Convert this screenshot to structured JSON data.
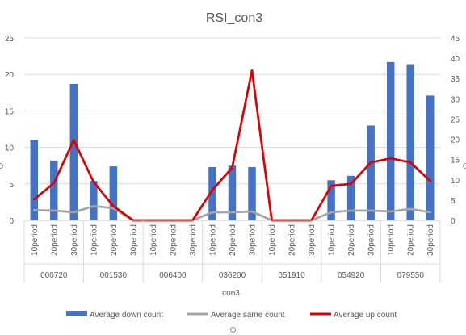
{
  "chart_data": {
    "type": "bar",
    "title": "RSI_con3",
    "group_axis_label": "con3",
    "groups": [
      "000720",
      "001530",
      "006400",
      "036200",
      "051910",
      "054920",
      "079550"
    ],
    "periods": [
      "10period",
      "20period",
      "30period"
    ],
    "categories": [
      "000720 10period",
      "000720 20period",
      "000720 30period",
      "001530 10period",
      "001530 20period",
      "001530 30period",
      "006400 10period",
      "006400 20period",
      "006400 30period",
      "036200 10period",
      "036200 20period",
      "036200 30period",
      "051910 10period",
      "051910 20period",
      "051910 30period",
      "054920 10period",
      "054920 20period",
      "054920 30period",
      "079550 10period",
      "079550 20period",
      "079550 30period"
    ],
    "left_axis": {
      "min": 0,
      "max": 25,
      "ticks": [
        "0",
        "5",
        "10",
        "15",
        "20",
        "25"
      ]
    },
    "right_axis": {
      "min": 0,
      "max": 45,
      "ticks": [
        "0",
        "5",
        "10",
        "15",
        "20",
        "25",
        "30",
        "35",
        "40",
        "45"
      ]
    },
    "grid": true,
    "legend_position": "bottom",
    "series": [
      {
        "name": "Average down count",
        "kind": "bar",
        "axis": "left",
        "color": "#4472c4",
        "values": [
          11,
          8.2,
          18.7,
          5.4,
          7.4,
          0,
          0,
          0,
          0,
          7.3,
          7.5,
          7.3,
          0,
          0,
          0,
          5.5,
          6.1,
          13,
          21.7,
          21.4,
          17.1
        ]
      },
      {
        "name": "Average same count",
        "kind": "line",
        "axis": "right",
        "color": "#a5a5a5",
        "values": [
          2.5,
          2.4,
          2,
          3.5,
          3,
          0,
          0,
          0,
          0,
          2,
          2,
          2.2,
          0,
          0,
          0,
          2,
          2.4,
          2.4,
          2.2,
          2.8,
          2
        ]
      },
      {
        "name": "Average up count",
        "kind": "line",
        "axis": "right",
        "color": "#e00000",
        "values": [
          5.2,
          9.2,
          19.8,
          9.5,
          3.5,
          0,
          0,
          0,
          0,
          7.5,
          13,
          37,
          0,
          0,
          0,
          8.5,
          9,
          14.3,
          15.3,
          14.3,
          9.7
        ]
      }
    ]
  }
}
